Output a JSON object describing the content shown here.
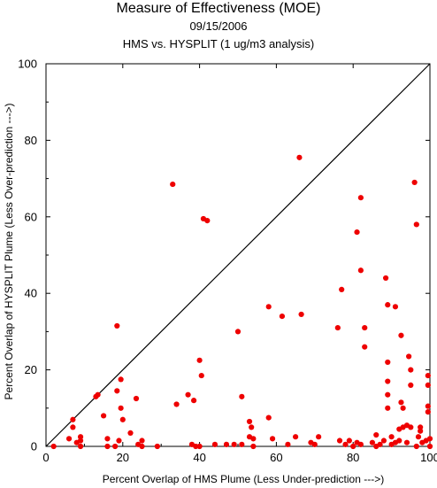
{
  "chart_data": {
    "type": "scatter",
    "title": "Measure of Effectiveness (MOE)",
    "subtitle": "09/15/2006",
    "subtitle2": "HMS vs. HYSPLIT  (1 ug/m3 analysis)",
    "xlabel": "Percent Overlap of HMS Plume (Less Under-prediction --->)",
    "ylabel": "Percent Overlap of HYSPLIT Plume (Less Over-prediction --->)",
    "xlim": [
      0,
      100
    ],
    "ylim": [
      0,
      100
    ],
    "xticks": [
      "0",
      "20",
      "40",
      "60",
      "80",
      "100"
    ],
    "yticks": [
      "0",
      "20",
      "40",
      "60",
      "80",
      "100"
    ],
    "grid": false,
    "reference_line": "y = x",
    "marker_color": "#ee0000",
    "points": [
      [
        2,
        0
      ],
      [
        6,
        2
      ],
      [
        7,
        7
      ],
      [
        7,
        5
      ],
      [
        8,
        1
      ],
      [
        9,
        2.5
      ],
      [
        9,
        1.5
      ],
      [
        9,
        0
      ],
      [
        13,
        13
      ],
      [
        13.5,
        13.5
      ],
      [
        15,
        8
      ],
      [
        16,
        2
      ],
      [
        16,
        0
      ],
      [
        18,
        0
      ],
      [
        18.5,
        14.5
      ],
      [
        18.5,
        31.5
      ],
      [
        19,
        1.5
      ],
      [
        19.5,
        17.5
      ],
      [
        19.5,
        10
      ],
      [
        20,
        7
      ],
      [
        22,
        3.5
      ],
      [
        23.5,
        12.5
      ],
      [
        24,
        0.5
      ],
      [
        25,
        1.5
      ],
      [
        25,
        0
      ],
      [
        29,
        0
      ],
      [
        33,
        68.5
      ],
      [
        34,
        11
      ],
      [
        37,
        13.5
      ],
      [
        38,
        0.5
      ],
      [
        38.5,
        12
      ],
      [
        39,
        0
      ],
      [
        40,
        22.5
      ],
      [
        40,
        0
      ],
      [
        40.5,
        18.5
      ],
      [
        41,
        59.5
      ],
      [
        42,
        59
      ],
      [
        44,
        0.5
      ],
      [
        47,
        0.5
      ],
      [
        49,
        0.5
      ],
      [
        50,
        30
      ],
      [
        51,
        13
      ],
      [
        51,
        0.5
      ],
      [
        53,
        2.5
      ],
      [
        53,
        6.5
      ],
      [
        53.5,
        5
      ],
      [
        54,
        0
      ],
      [
        54,
        2
      ],
      [
        58,
        36.5
      ],
      [
        58,
        7.5
      ],
      [
        59,
        2
      ],
      [
        61.5,
        34
      ],
      [
        63,
        0.5
      ],
      [
        65,
        2.5
      ],
      [
        66,
        75.5
      ],
      [
        66.5,
        34.5
      ],
      [
        69,
        1
      ],
      [
        70,
        0.5
      ],
      [
        71,
        2.5
      ],
      [
        76,
        31
      ],
      [
        76.5,
        1.5
      ],
      [
        77,
        41
      ],
      [
        78,
        0.5
      ],
      [
        79,
        1.5
      ],
      [
        80,
        0
      ],
      [
        81,
        56
      ],
      [
        81,
        1
      ],
      [
        82,
        65
      ],
      [
        82,
        46
      ],
      [
        82,
        0.5
      ],
      [
        83,
        31
      ],
      [
        83,
        26
      ],
      [
        85,
        1
      ],
      [
        86,
        3
      ],
      [
        86,
        0
      ],
      [
        87,
        0.5
      ],
      [
        88,
        1.5
      ],
      [
        88.5,
        44
      ],
      [
        89,
        37
      ],
      [
        89,
        22
      ],
      [
        89,
        17
      ],
      [
        89,
        13.5
      ],
      [
        89,
        10
      ],
      [
        90,
        2.5
      ],
      [
        90,
        0.5
      ],
      [
        91,
        36.5
      ],
      [
        91,
        1
      ],
      [
        92,
        4.5
      ],
      [
        92,
        1.5
      ],
      [
        92.5,
        29
      ],
      [
        92.5,
        11.5
      ],
      [
        93,
        10
      ],
      [
        93,
        5
      ],
      [
        94,
        5.5
      ],
      [
        94,
        1
      ],
      [
        94.5,
        23.5
      ],
      [
        95,
        20
      ],
      [
        95,
        16
      ],
      [
        95,
        5
      ],
      [
        96,
        69
      ],
      [
        96.5,
        58
      ],
      [
        96.5,
        0
      ],
      [
        97,
        2.5
      ],
      [
        97.5,
        4
      ],
      [
        97.5,
        5
      ],
      [
        98,
        1
      ],
      [
        99,
        1.5
      ],
      [
        99.5,
        18.5
      ],
      [
        99.5,
        16
      ],
      [
        99.5,
        10.5
      ],
      [
        99.5,
        9
      ],
      [
        100,
        2
      ],
      [
        100,
        0
      ]
    ]
  }
}
